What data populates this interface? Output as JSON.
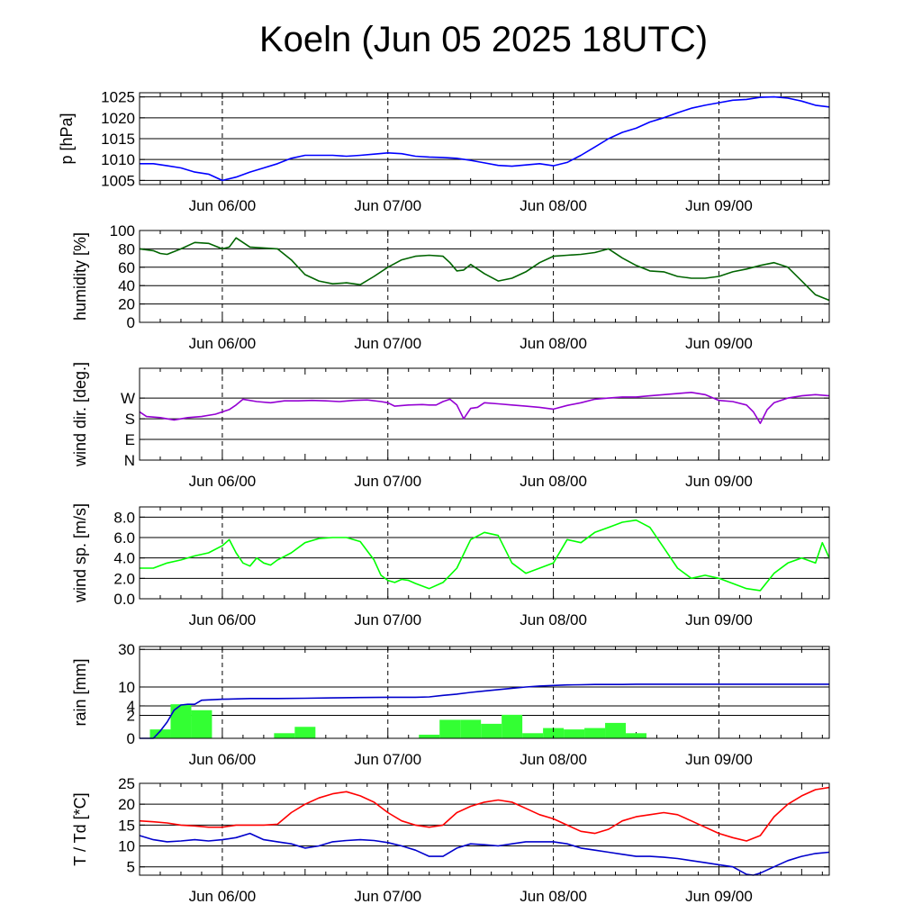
{
  "title": "Koeln (Jun 05 2025 18UTC)",
  "colors": {
    "pressure": "#0000ff",
    "humidity": "#006400",
    "wind_dir": "#9400d3",
    "wind_speed": "#00ff00",
    "rain_bar": "#33ff33",
    "rain_cum": "#0000cc",
    "temperature": "#ff0000",
    "dewpoint": "#0000cc"
  },
  "chart_data": [
    {
      "type": "line",
      "ylabel": "p [hPa]",
      "ylim": [
        1004,
        1026
      ],
      "yticks": [
        1005,
        1010,
        1015,
        1020,
        1025
      ],
      "xlim": [
        0,
        100
      ],
      "day_lines": [
        12,
        36,
        60,
        84
      ],
      "xticks": [
        "Jun 06/00",
        "Jun 07/00",
        "Jun 08/00",
        "Jun 09/00"
      ],
      "series": [
        {
          "color_key": "pressure",
          "x": [
            0,
            2,
            4,
            6,
            8,
            10,
            12,
            14,
            16,
            18,
            20,
            22,
            24,
            26,
            28,
            30,
            32,
            34,
            36,
            38,
            40,
            42,
            44,
            46,
            48,
            50,
            52,
            54,
            56,
            58,
            60,
            62,
            64,
            66,
            68,
            70,
            72,
            74,
            76,
            78,
            80,
            82,
            84,
            86,
            88,
            90,
            92,
            94,
            96,
            98,
            100
          ],
          "y": [
            1009,
            1009,
            1008.5,
            1008,
            1007,
            1006.5,
            1005,
            1005.8,
            1007,
            1008,
            1009,
            1010.3,
            1011,
            1011,
            1011,
            1010.8,
            1011,
            1011.3,
            1011.6,
            1011.4,
            1010.8,
            1010.6,
            1010.5,
            1010.3,
            1009.8,
            1009.2,
            1008.6,
            1008.4,
            1008.7,
            1009,
            1008.5,
            1009.3,
            1011,
            1013,
            1015,
            1016.5,
            1017.5,
            1019,
            1020,
            1021.2,
            1022.3,
            1023,
            1023.6,
            1024.2,
            1024.4,
            1024.9,
            1025,
            1024.7,
            1024,
            1023,
            1022.6
          ]
        }
      ]
    },
    {
      "type": "line",
      "ylabel": "humidity [%]",
      "ylim": [
        0,
        100
      ],
      "yticks": [
        0,
        20,
        40,
        60,
        80,
        100
      ],
      "xlim": [
        0,
        100
      ],
      "day_lines": [
        12,
        36,
        60,
        84
      ],
      "xticks": [
        "Jun 06/00",
        "Jun 07/00",
        "Jun 08/00",
        "Jun 09/00"
      ],
      "series": [
        {
          "color_key": "humidity",
          "x": [
            0,
            2,
            3,
            4,
            6,
            8,
            10,
            12,
            13,
            14,
            16,
            18,
            20,
            22,
            24,
            26,
            28,
            30,
            32,
            34,
            36,
            38,
            40,
            42,
            44,
            45,
            46,
            47,
            48,
            50,
            52,
            54,
            56,
            58,
            60,
            62,
            64,
            66,
            68,
            70,
            72,
            74,
            76,
            78,
            80,
            82,
            84,
            86,
            88,
            90,
            92,
            94,
            96,
            98,
            100
          ],
          "y": [
            80,
            78,
            75,
            74,
            80,
            87,
            86,
            80,
            82,
            92,
            82,
            81,
            80,
            68,
            52,
            45,
            42,
            43,
            41,
            50,
            60,
            68,
            72,
            73,
            72,
            65,
            56,
            57,
            63,
            53,
            45,
            48,
            55,
            65,
            72,
            73,
            74,
            76,
            80,
            70,
            62,
            56,
            55,
            50,
            48,
            48,
            50,
            55,
            58,
            62,
            65,
            60,
            45,
            30,
            24
          ]
        }
      ]
    },
    {
      "type": "line",
      "ylabel": "wind dir. [deg.]",
      "ylim": [
        0,
        400
      ],
      "yticks": [
        0,
        90,
        180,
        270
      ],
      "yticklabels": [
        "N",
        "E",
        "S",
        "W"
      ],
      "xlim": [
        0,
        100
      ],
      "day_lines": [
        12,
        36,
        60,
        84
      ],
      "xticks": [
        "Jun 06/00",
        "Jun 07/00",
        "Jun 08/00",
        "Jun 09/00"
      ],
      "series": [
        {
          "color_key": "wind_dir",
          "x": [
            0,
            1,
            3,
            5,
            7,
            9,
            11,
            13,
            14,
            15,
            17,
            19,
            21,
            23,
            25,
            27,
            29,
            31,
            33,
            35,
            36,
            37,
            39,
            41,
            42,
            43,
            44,
            45,
            46,
            47,
            48,
            49,
            50,
            52,
            54,
            56,
            58,
            60,
            62,
            64,
            66,
            68,
            70,
            72,
            74,
            76,
            78,
            80,
            82,
            84,
            86,
            88,
            89,
            90,
            91,
            92,
            94,
            96,
            98,
            100
          ],
          "y": [
            210,
            190,
            185,
            175,
            185,
            190,
            200,
            220,
            240,
            265,
            255,
            250,
            258,
            258,
            260,
            258,
            255,
            260,
            262,
            255,
            250,
            235,
            240,
            242,
            240,
            240,
            255,
            265,
            240,
            180,
            225,
            230,
            250,
            245,
            240,
            235,
            230,
            222,
            238,
            250,
            265,
            270,
            275,
            275,
            280,
            285,
            290,
            295,
            285,
            260,
            255,
            240,
            210,
            160,
            220,
            250,
            270,
            280,
            285,
            280
          ]
        }
      ]
    },
    {
      "type": "line",
      "ylabel": "wind sp. [m/s]",
      "ylim": [
        0,
        9
      ],
      "yticks": [
        0,
        2,
        4,
        6,
        8
      ],
      "yticklabels": [
        "0.0",
        "2.0",
        "4.0",
        "6.0",
        "8.0"
      ],
      "xlim": [
        0,
        100
      ],
      "day_lines": [
        12,
        36,
        60,
        84
      ],
      "xticks": [
        "Jun 06/00",
        "Jun 07/00",
        "Jun 08/00",
        "Jun 09/00"
      ],
      "series": [
        {
          "color_key": "wind_speed",
          "x": [
            0,
            2,
            4,
            6,
            8,
            10,
            12,
            13,
            14,
            15,
            16,
            17,
            18,
            19,
            20,
            22,
            24,
            26,
            28,
            30,
            32,
            34,
            35,
            36,
            37,
            38,
            39,
            40,
            42,
            44,
            46,
            48,
            50,
            52,
            54,
            56,
            58,
            60,
            62,
            64,
            66,
            68,
            70,
            72,
            74,
            76,
            78,
            80,
            82,
            84,
            86,
            88,
            90,
            92,
            94,
            96,
            98,
            99,
            100
          ],
          "y": [
            3,
            3,
            3.5,
            3.8,
            4.2,
            4.5,
            5.2,
            5.8,
            4.5,
            3.5,
            3.2,
            4,
            3.5,
            3.3,
            3.8,
            4.5,
            5.5,
            5.9,
            6,
            6,
            5.6,
            3.8,
            2.3,
            1.8,
            1.6,
            1.9,
            1.8,
            1.5,
            1,
            1.6,
            3,
            5.8,
            6.5,
            6.2,
            3.5,
            2.5,
            3,
            3.5,
            5.8,
            5.5,
            6.5,
            7,
            7.5,
            7.7,
            7,
            5,
            3,
            2,
            2.3,
            2,
            1.5,
            1,
            0.8,
            2.5,
            3.5,
            4,
            3.5,
            5.5,
            4
          ]
        }
      ]
    },
    {
      "type": "bar",
      "ylabel": "rain [mm]",
      "ylim": [
        0,
        32
      ],
      "yticks": [
        0,
        2,
        4,
        10,
        30
      ],
      "yticklabels": [
        "0",
        "2",
        "4",
        "10",
        "30"
      ],
      "xlim": [
        0,
        100
      ],
      "day_lines": [
        12,
        36,
        60,
        84
      ],
      "xticks": [
        "Jun 06/00",
        "Jun 07/00",
        "Jun 08/00",
        "Jun 09/00"
      ],
      "bars": {
        "color_key": "rain_bar",
        "x_start": [
          1.5,
          4.5,
          7.5,
          19.5,
          22.5,
          40.5,
          43.5,
          46.5,
          49.5,
          52.5,
          55.5,
          58.5,
          61.5,
          64.5,
          67.5,
          70.5
        ],
        "width": 3,
        "values": [
          0.3,
          4.4,
          3,
          0.1,
          0.5,
          0.05,
          1.3,
          1.3,
          0.8,
          2.1,
          0.1,
          0.4,
          0.3,
          0.4,
          0.9,
          0.1
        ]
      },
      "series": [
        {
          "color_key": "rain_cum",
          "x": [
            0,
            2,
            3,
            4,
            5,
            6,
            7,
            8,
            9,
            12,
            16,
            20,
            24,
            28,
            32,
            36,
            40,
            42,
            44,
            46,
            48,
            50,
            52,
            54,
            56,
            58,
            60,
            62,
            64,
            66,
            68,
            70,
            72,
            74,
            76,
            80,
            84,
            88,
            92,
            96,
            100
          ],
          "y": [
            0,
            0,
            0.2,
            1,
            3,
            4.2,
            4.4,
            4.4,
            5.5,
            5.8,
            6,
            6,
            6.1,
            6.2,
            6.3,
            6.4,
            6.4,
            6.5,
            7,
            7.4,
            8,
            8.5,
            9,
            9.5,
            10,
            10.4,
            10.6,
            10.8,
            10.9,
            11,
            11,
            11,
            11.1,
            11.1,
            11.1,
            11.1,
            11.1,
            11.1,
            11.1,
            11.1,
            11.1
          ]
        }
      ]
    },
    {
      "type": "line",
      "ylabel": "T / Td [*C]",
      "ylim": [
        3,
        25
      ],
      "yticks": [
        5,
        10,
        15,
        20,
        25
      ],
      "xlim": [
        0,
        100
      ],
      "day_lines": [
        12,
        36,
        60,
        84
      ],
      "xticks": [
        "Jun 06/00",
        "Jun 07/00",
        "Jun 08/00",
        "Jun 09/00"
      ],
      "series": [
        {
          "color_key": "temperature",
          "name": "T",
          "x": [
            0,
            2,
            4,
            6,
            8,
            10,
            12,
            14,
            16,
            18,
            20,
            22,
            24,
            26,
            28,
            30,
            32,
            34,
            36,
            38,
            40,
            42,
            44,
            45,
            46,
            48,
            50,
            52,
            54,
            56,
            58,
            60,
            62,
            64,
            66,
            68,
            70,
            72,
            74,
            76,
            78,
            80,
            82,
            84,
            86,
            88,
            90,
            92,
            94,
            96,
            98,
            100
          ],
          "y": [
            16,
            15.8,
            15.5,
            15,
            14.8,
            14.5,
            14.5,
            15,
            15,
            15,
            15.2,
            18,
            20,
            21.5,
            22.5,
            23,
            22,
            20.5,
            18,
            16,
            15,
            14.5,
            15,
            16.5,
            18,
            19.5,
            20.5,
            21,
            20.5,
            19,
            17.5,
            16.5,
            15,
            13.5,
            13,
            14,
            16,
            17,
            17.5,
            18,
            17.5,
            16,
            14.5,
            13,
            12,
            11.2,
            12.5,
            17,
            20,
            22,
            23.5,
            24
          ]
        },
        {
          "color_key": "dewpoint",
          "name": "Td",
          "x": [
            0,
            2,
            4,
            6,
            8,
            10,
            12,
            14,
            16,
            18,
            20,
            22,
            24,
            26,
            28,
            30,
            32,
            34,
            36,
            38,
            40,
            42,
            44,
            46,
            48,
            50,
            52,
            54,
            56,
            58,
            60,
            62,
            64,
            66,
            68,
            70,
            72,
            74,
            76,
            78,
            80,
            82,
            84,
            86,
            88,
            89,
            90,
            92,
            94,
            96,
            98,
            100
          ],
          "y": [
            12.5,
            11.5,
            11,
            11.2,
            11.5,
            11.2,
            11.5,
            12,
            13,
            11.5,
            11,
            10.5,
            9.5,
            10,
            11,
            11.3,
            11.5,
            11.3,
            10.8,
            10,
            9,
            7.5,
            7.5,
            9.5,
            10.5,
            10.3,
            10,
            10.5,
            11,
            11,
            11,
            10.5,
            9.5,
            9,
            8.5,
            8,
            7.5,
            7.5,
            7.3,
            7,
            6.5,
            6,
            5.5,
            5,
            3.2,
            3,
            3.5,
            5,
            6.5,
            7.5,
            8.2,
            8.5
          ]
        }
      ]
    }
  ]
}
